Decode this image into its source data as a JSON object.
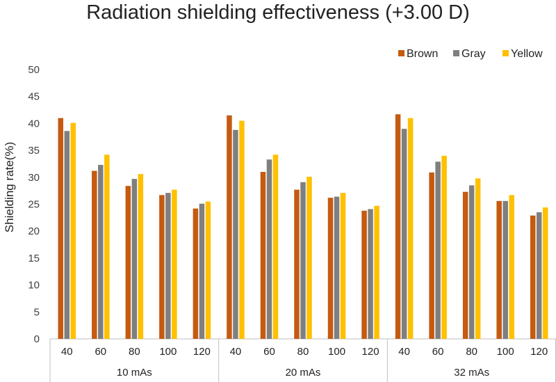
{
  "chart_data": {
    "type": "bar",
    "title": "Radiation shielding effectiveness (+3.00 D)",
    "ylabel": "Shielding rate(%)",
    "xlabel": "",
    "ylim": [
      0,
      50
    ],
    "yticks": [
      0,
      5,
      10,
      15,
      20,
      25,
      30,
      35,
      40,
      45,
      50
    ],
    "grid": false,
    "legend_position": "top-right",
    "groups": [
      {
        "label": "10 mAs",
        "categories": [
          "40",
          "60",
          "80",
          "100",
          "120"
        ]
      },
      {
        "label": "20 mAs",
        "categories": [
          "40",
          "60",
          "80",
          "100",
          "120"
        ]
      },
      {
        "label": "32 mAs",
        "categories": [
          "40",
          "60",
          "80",
          "100",
          "120"
        ]
      }
    ],
    "series": [
      {
        "name": "Brown",
        "color": "#C55A11",
        "values": [
          41.0,
          31.2,
          28.4,
          26.7,
          24.2,
          41.5,
          31.0,
          27.7,
          26.2,
          23.8,
          41.7,
          30.9,
          27.3,
          25.6,
          22.9
        ]
      },
      {
        "name": "Gray",
        "color": "#7F7F7F",
        "values": [
          38.6,
          32.3,
          29.7,
          27.1,
          25.1,
          38.8,
          33.3,
          29.1,
          26.4,
          24.1,
          39.0,
          32.9,
          28.5,
          25.6,
          23.5
        ]
      },
      {
        "name": "Yellow",
        "color": "#FFC000",
        "values": [
          40.1,
          34.2,
          30.6,
          27.7,
          25.5,
          40.5,
          34.2,
          30.1,
          27.1,
          24.7,
          41.0,
          34.0,
          29.8,
          26.7,
          24.4
        ]
      }
    ]
  }
}
